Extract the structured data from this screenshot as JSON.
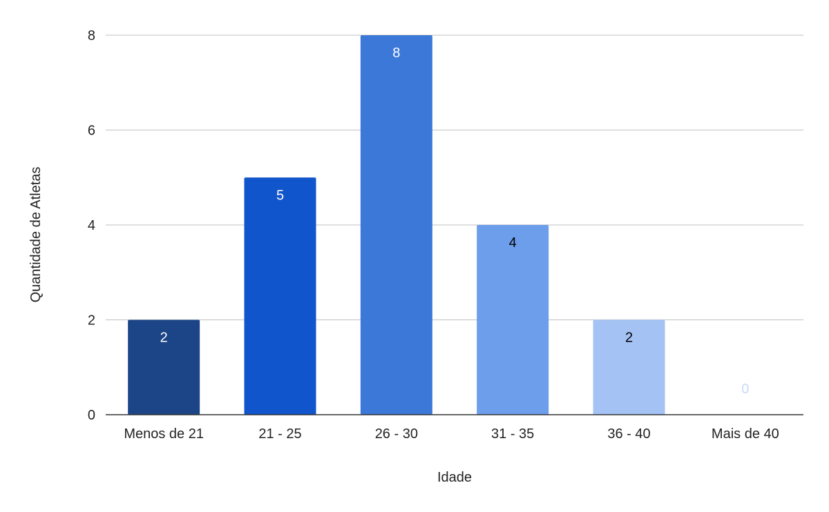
{
  "chart_data": {
    "type": "bar",
    "title": "",
    "xlabel": "Idade",
    "ylabel": "Quantidade de Atletas",
    "categories": [
      "Menos de 21",
      "21 - 25",
      "26 - 30",
      "31 - 35",
      "36 - 40",
      "Mais de 40"
    ],
    "values": [
      2,
      5,
      8,
      4,
      2,
      0
    ],
    "data_labels": [
      "2",
      "5",
      "8",
      "4",
      "2",
      "0"
    ],
    "bar_colors": [
      "#1c4587",
      "#1155cc",
      "#3c78d8",
      "#6d9eeb",
      "#a4c2f4",
      "#c9daf8"
    ],
    "label_colors": [
      "#ffffff",
      "#ffffff",
      "#ffffff",
      "#000000",
      "#000000",
      "#c9daf8"
    ],
    "ylim": [
      0,
      8
    ],
    "yticks": [
      "0",
      "2",
      "4",
      "6",
      "8"
    ],
    "grid": true,
    "legend": "none"
  }
}
